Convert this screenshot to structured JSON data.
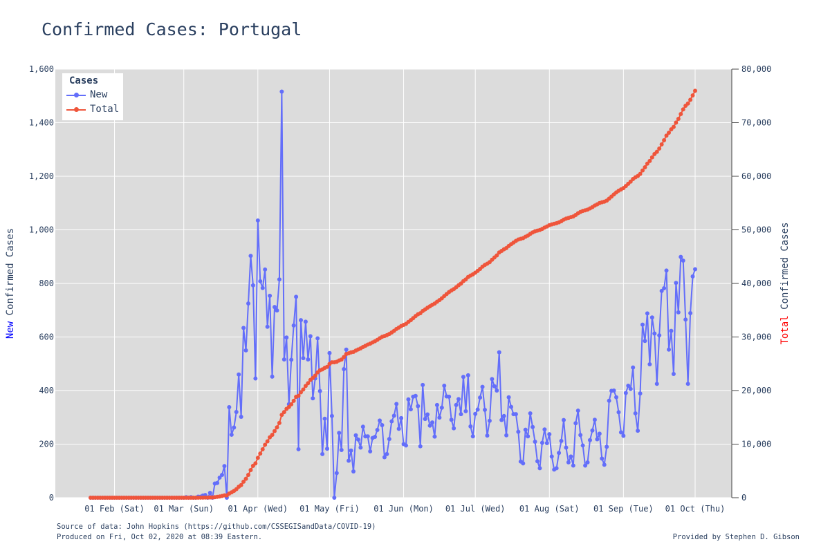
{
  "chart_data": {
    "type": "line",
    "title": "Confirmed Cases: Portugal",
    "y_left_label_colored": "New",
    "y_left_label_rest": " Confirmed Cases",
    "y_right_label_colored": "Total",
    "y_right_label_rest": " Confirmed Cases",
    "y_left_range": [
      0,
      1600
    ],
    "y_right_range": [
      0,
      80000
    ],
    "y_left_ticks": [
      "0",
      "200",
      "400",
      "600",
      "800",
      "1,000",
      "1,200",
      "1,400",
      "1,600"
    ],
    "y_right_ticks": [
      "0",
      "10,000",
      "20,000",
      "30,000",
      "40,000",
      "50,000",
      "60,000",
      "70,000",
      "80,000"
    ],
    "x_range": [
      "2020-01-22",
      "2020-10-01"
    ],
    "x_ticks": [
      "01 Feb (Sat)",
      "01 Mar (Sun)",
      "01 Apr (Wed)",
      "01 May (Fri)",
      "01 Jun (Mon)",
      "01 Jul (Wed)",
      "01 Aug (Sat)",
      "01 Sep (Tue)",
      "01 Oct (Thu)"
    ],
    "legend": {
      "title": "Cases",
      "position": "top-left"
    },
    "grid": true,
    "series": [
      {
        "name": "New",
        "axis": "left",
        "color": "#636efa",
        "x_start": "2020-01-22",
        "values": [
          0,
          0,
          0,
          0,
          0,
          0,
          0,
          0,
          0,
          0,
          0,
          0,
          0,
          0,
          0,
          0,
          0,
          0,
          0,
          0,
          0,
          0,
          0,
          0,
          0,
          0,
          0,
          0,
          0,
          0,
          0,
          0,
          0,
          0,
          0,
          0,
          0,
          0,
          0,
          0,
          2,
          0,
          2,
          0,
          0,
          4,
          4,
          8,
          10,
          0,
          18,
          0,
          53,
          55,
          75,
          85,
          118,
          0,
          338,
          235,
          262,
          320,
          460,
          302,
          634,
          550,
          725,
          903,
          793,
          445,
          1035,
          808,
          783,
          852,
          638,
          754,
          452,
          712,
          699,
          815,
          1516,
          516,
          598,
          349,
          515,
          643,
          750,
          181,
          663,
          521,
          657,
          516,
          603,
          371,
          445,
          595,
          398,
          163,
          295,
          183,
          540,
          305,
          0,
          92,
          242,
          178,
          480,
          553,
          138,
          176,
          98,
          233,
          217,
          187,
          265,
          229,
          229,
          173,
          223,
          227,
          253,
          288,
          271,
          151,
          163,
          219,
          285,
          306,
          350,
          257,
          297,
          200,
          195,
          367,
          330,
          377,
          380,
          342,
          192,
          421,
          294,
          311,
          269,
          281,
          228,
          346,
          299,
          336,
          418,
          378,
          377,
          291,
          259,
          346,
          368,
          312,
          451,
          323,
          457,
          266,
          229,
          313,
          329,
          374,
          414,
          328,
          232,
          287,
          443,
          416,
          400,
          543,
          290,
          305,
          233,
          375,
          339,
          312,
          312,
          246,
          135,
          128,
          254,
          229,
          315,
          264,
          209,
          136,
          110,
          205,
          255,
          204,
          237,
          154,
          105,
          110,
          167,
          212,
          290,
          187,
          132,
          154,
          120,
          278,
          325,
          234,
          195,
          120,
          132,
          215,
          251,
          291,
          218,
          239,
          146,
          123,
          190,
          362,
          399,
          400,
          375,
          319,
          244,
          231,
          391,
          418,
          406,
          486,
          315,
          250,
          389,
          646,
          585,
          688,
          498,
          673,
          613,
          425,
          606,
          772,
          782,
          848,
          553,
          623,
          462,
          802,
          692,
          899,
          885,
          665,
          425,
          689,
          826,
          853
        ]
      },
      {
        "name": "Total",
        "axis": "right",
        "color": "#ef553b",
        "x_start": "2020-01-22",
        "values": [
          0,
          0,
          0,
          0,
          0,
          0,
          0,
          0,
          0,
          0,
          0,
          0,
          0,
          0,
          0,
          0,
          0,
          0,
          0,
          0,
          0,
          0,
          0,
          0,
          0,
          0,
          0,
          0,
          0,
          0,
          0,
          0,
          0,
          0,
          0,
          0,
          0,
          0,
          0,
          0,
          2,
          2,
          4,
          4,
          4,
          8,
          12,
          20,
          30,
          30,
          48,
          48,
          101,
          156,
          231,
          316,
          434,
          434,
          772,
          1007,
          1269,
          1589,
          2049,
          2351,
          2985,
          3535,
          4260,
          5163,
          5956,
          6401,
          7436,
          8244,
          9027,
          9879,
          10517,
          11271,
          11723,
          12435,
          13134,
          13949,
          15465,
          15981,
          16579,
          16928,
          17443,
          18086,
          18836,
          19017,
          19680,
          20201,
          20858,
          21374,
          21977,
          22348,
          22793,
          23388,
          23786,
          23949,
          24244,
          24427,
          24967,
          25272,
          25272,
          25364,
          25606,
          25784,
          26264,
          26817,
          26955,
          27131,
          27229,
          27462,
          27679,
          27866,
          28131,
          28360,
          28589,
          28762,
          28985,
          29212,
          29465,
          29753,
          30024,
          30175,
          30338,
          30557,
          30842,
          31148,
          31498,
          31755,
          32052,
          32252,
          32447,
          32814,
          33144,
          33521,
          33901,
          34243,
          34435,
          34856,
          35150,
          35461,
          35730,
          36011,
          36239,
          36585,
          36884,
          37220,
          37638,
          38016,
          38393,
          38684,
          38943,
          39289,
          39657,
          39969,
          40420,
          40743,
          41200,
          41466,
          41695,
          42008,
          42337,
          42711,
          43125,
          43453,
          43685,
          43972,
          44415,
          44831,
          45231,
          45774,
          46064,
          46369,
          46602,
          46977,
          47316,
          47628,
          47940,
          48186,
          48321,
          48449,
          48703,
          48932,
          49247,
          49511,
          49720,
          49856,
          49966,
          50171,
          50426,
          50630,
          50867,
          51021,
          51126,
          51236,
          51403,
          51615,
          51905,
          52092,
          52224,
          52378,
          52498,
          52776,
          53101,
          53335,
          53530,
          53650,
          53782,
          53997,
          54248,
          54539,
          54757,
          54996,
          55142,
          55265,
          55455,
          55817,
          56216,
          56616,
          56991,
          57310,
          57554,
          57785,
          58176,
          58594,
          59000,
          59486,
          59801,
          60051,
          60440,
          61086,
          61671,
          62359,
          62857,
          63530,
          64143,
          64568,
          65174,
          65946,
          66728,
          67576,
          68129,
          68752,
          69214,
          70016,
          70708,
          71607,
          72492,
          73157,
          73582,
          74271,
          75097,
          75950
        ]
      }
    ]
  },
  "footer": {
    "source": "Source of data: John Hopkins (https://github.com/CSSEGISandData/COVID-19)",
    "produced": "Produced on Fri, Oct 02, 2020 at 08:39 Eastern.",
    "credit": "Provided by Stephen D. Gibson"
  }
}
